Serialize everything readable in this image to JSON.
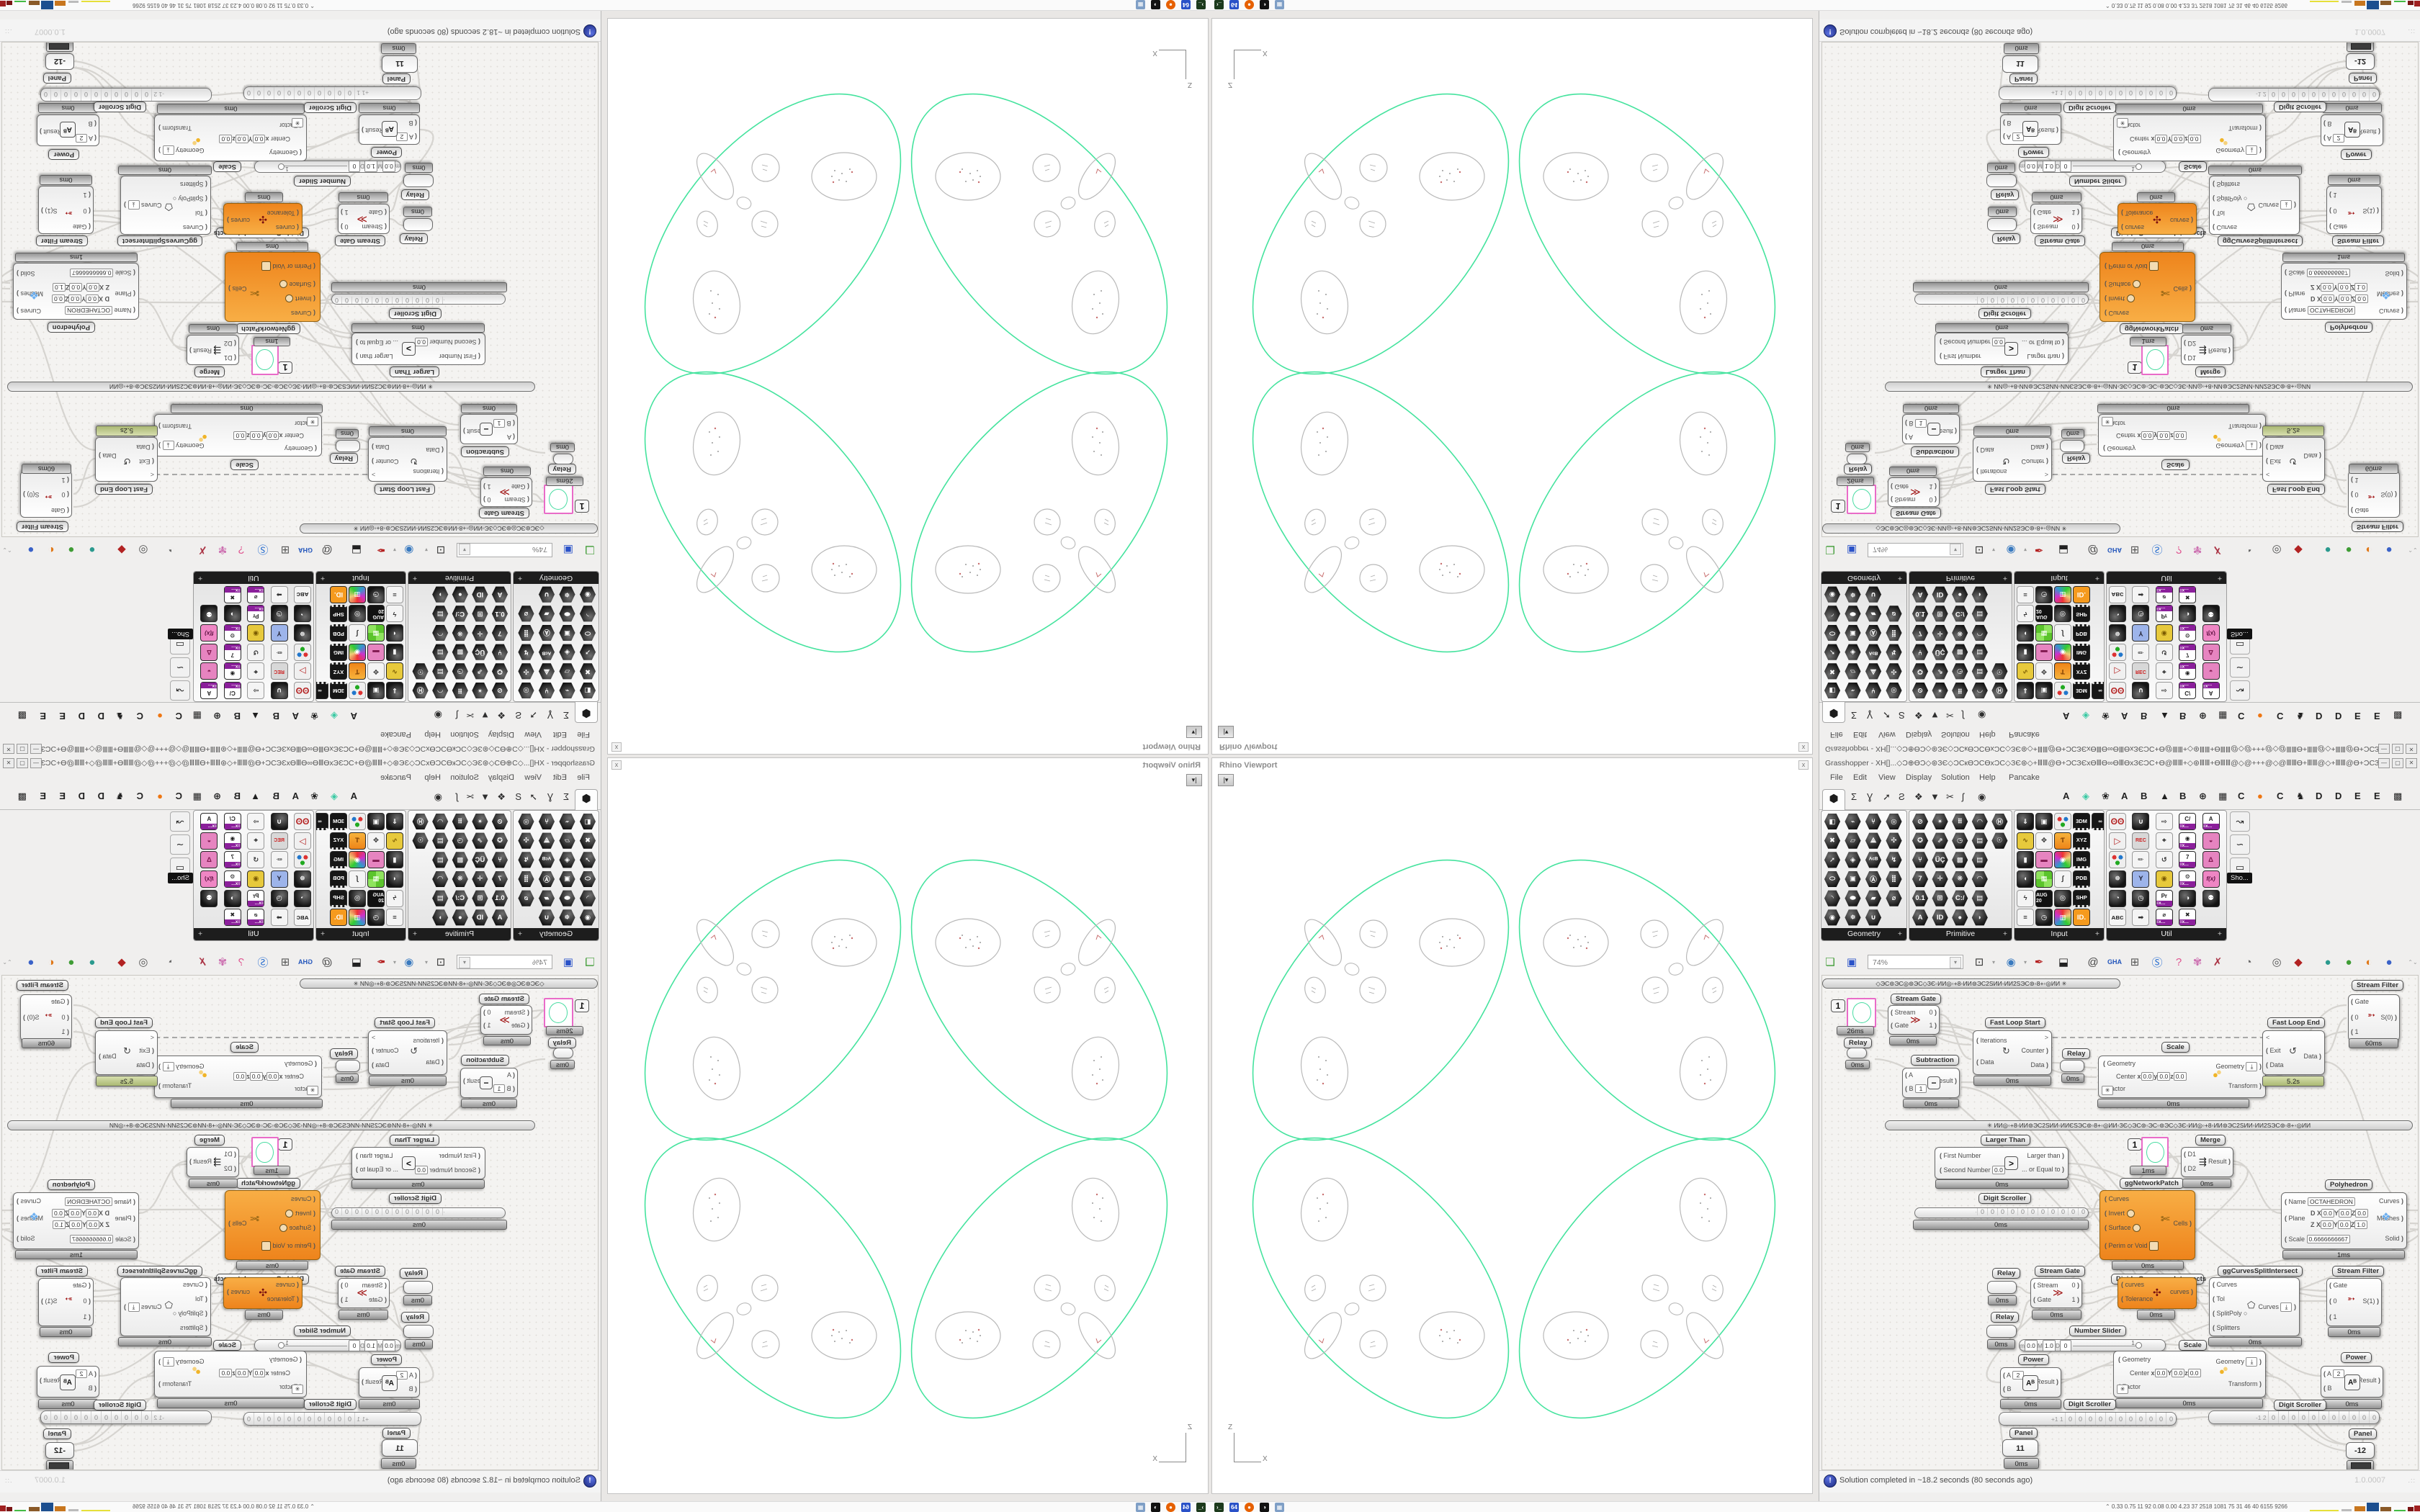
{
  "viewport": {
    "title": "Rhino Viewport",
    "close_glyph": "x",
    "collapse_glyph": "|▾",
    "axis": {
      "vertical": "Z",
      "horizontal": "X"
    },
    "colors": {
      "curve": "#45e39e",
      "inner": "#b9b9b9",
      "mark": "#c86e6e"
    }
  },
  "gh": {
    "title": "Grasshopper - XH[]...◇Ɔ⊕ƟƆ◇⊛ЗЄ◇ƆСкƟƆСƟхƆС◇ЗЄ⊛◇+ⅢⅢ@Ɵ+ƆСЗЄхƟⅢƟ∞ƟⅢƟхЗЄƆС+Ɵ@ⅢⅢ+◇⊛ⅢⅢ+ƟⅢⅢ@◇@+++@◇@ⅢⅢƟ+ⅢⅢ@◇+ⅢⅢ@Ɵ+ƆСЗЄхƟⅢƟхƟⅢ...",
    "window_buttons": [
      "—",
      "▢",
      "✕"
    ],
    "menu": [
      "File",
      "Edit",
      "View",
      "Display",
      "Solution",
      "Help",
      "Pancake"
    ],
    "tabs": {
      "selected_glyph": "⬢",
      "icon_tabs": [
        "Σ",
        "Ɣ",
        "➚",
        "Ƨ",
        "❖",
        "▼",
        "✂",
        "ʃ",
        "◉"
      ],
      "letter_tabs": [
        "A",
        "◈|t",
        "❀",
        "A",
        "B",
        "▲",
        "B",
        "⊕",
        "▦",
        "C",
        "●|o",
        "C",
        "♞",
        "D",
        "D",
        "E",
        "E",
        "▩"
      ]
    },
    "palettes": [
      {
        "name": "Geometry",
        "rows": [
          [
            "◧",
            "⌁",
            "⑂",
            "◎"
          ],
          [
            "✖",
            "▱",
            "⟁",
            "✣"
          ],
          [
            "➚",
            "◈",
            "ᴬᶜᴮ",
            "↯"
          ],
          [
            "⬭",
            "▣",
            "Ⓐ",
            "⣿"
          ],
          [
            "◝",
            "⬬",
            "▰",
            "⌀"
          ],
          [
            "◉",
            "❅",
            "∪"
          ]
        ]
      },
      {
        "name": "Primitive",
        "rows": [
          [
            "⊘",
            "✴",
            "⠿",
            "◠",
            "Ⓗ"
          ],
          [
            "✪",
            "⇗",
            "◷",
            "▤",
            "☉"
          ],
          [
            "⑂",
            "ÜÇ",
            "▩",
            "▤"
          ],
          [
            "7",
            "✛",
            "❋",
            "◠"
          ],
          [
            "0.1",
            "⊞",
            "C:/",
            "▤"
          ],
          [
            "A",
            "ID",
            "●",
            "◗"
          ]
        ]
      },
      {
        "name": "Input",
        "rows": [
          [
            "⇓|sq",
            "▣|sq",
            "✦|sq mc",
            "3DM|sq k2",
            "∞|sq k2"
          ],
          [
            "∿|sq y",
            "✥|sq w",
            "Ƭ|sq o",
            "XYZ|sq k2"
          ],
          [
            "▮|sq",
            "▬|sq p",
            "◉|sq rb",
            "IMG|sq k2"
          ],
          [
            "◖|sq",
            "▦|sq g",
            "∫|sq w",
            "PDB|sq k2"
          ],
          [
            "ϟ|sq w",
            "AUG 20|sq cal",
            "◎|sq",
            "SHP|sq k2"
          ],
          [
            "≡|sq w",
            "◷|sq",
            "▥|sq rb",
            "ID.|sq o2"
          ]
        ]
      },
      {
        "name": "Util",
        "rows": [
          [
            "ʘʘ|sq r",
            "∪|sq",
            "⇨|sq w",
            "C/|sq v2",
            "A|sq v2"
          ],
          [
            "▷|sq r",
            "REC|sq rec",
            "⌖|sq w",
            "◉|sq v2",
            "◒|sq p"
          ],
          [
            "⚛|sq mc",
            "✏|sq w",
            "↺|sq w",
            "7|sq v2",
            "Δ|sq p"
          ],
          [
            "❅|sq",
            "Y|sq b",
            "◉|sq y",
            "⚙|sq v2",
            "f(x)|sq p2"
          ],
          [
            "◔|sq",
            "◷|sq",
            "Pr|sq v2",
            "◑|sq",
            "⚉|sq"
          ],
          [
            "ᴀʙᴄ|sq w",
            "➡|sq w",
            "⌀|sq v2",
            "✖|sq v2"
          ]
        ]
      }
    ],
    "extra_icons": [
      "↝",
      "∽",
      "▭"
    ],
    "show_more": "Sho...",
    "toolbar": {
      "zoom": "74%",
      "icons": [
        "❏|#3f9c35",
        "▣|#2a52c8",
        "⊡|#333",
        "◉|#3a7abf",
        "✒|#b42020",
        "⬓|#222",
        "@|#444",
        "GHA|#2255bb",
        "⊞|#555",
        "Ⓢ|#2a6fd0",
        "?|#e05590",
        "✾|#cc6fb0",
        "✗|#aa3344",
        "◔|#666",
        "◎|#555",
        "◆|#b22222",
        "●|#2b9a8e",
        "●|#3f9c35",
        "◐|#e07818",
        "●|#3a62c8"
      ],
      "scroll_glyphs": "⌃⌄"
    },
    "rails": [
      "◇ЭС⊚ЭС◎⊚ЭС◇ЗЄ◦ИИ◎◦+8◦ИИ⊚ЭС2ЅИИ◦ИИ2ЅЭС⊚◦8+◦◎ИИ",
      "ИИ◎◦+8◦ИИ⊚ЭС2ЅИИ◦ИИЄЅЭС⊚◦8+◦◎ИИ◦ЗЄ◇ЭС⊚◦ЭС◦⊚ЭС◇ЗЄ◦ИИ◎◦+8◦ИИ⊚ЭС2ЅИИ◦ИИ2ЅЭС⊚◦8+◦◎ИИ"
    ],
    "rail_star": "✳",
    "statusbar": {
      "icon": "!",
      "text": "Solution completed in ~18.2 seconds (80 seconds ago)",
      "version": "1.0.0007"
    },
    "components": {
      "preview_top": {
        "value": "1",
        "timer": "26ms"
      },
      "relay_top": {
        "label": "Relay",
        "timer": "0ms"
      },
      "stream_gate_top": {
        "label": "Stream Gate",
        "ins": [
          "Stream",
          "Gate"
        ],
        "outs": [
          "0",
          "1"
        ],
        "icon": "≫",
        "timer": "0ms"
      },
      "subtraction": {
        "label": "Subtraction",
        "ins": [
          "A",
          "B"
        ],
        "b_value": "1",
        "icon": "−",
        "outs": [
          "Result"
        ],
        "timer": "0ms"
      },
      "fast_loop_start": {
        "label": "Fast Loop Start",
        "ins": [
          "Iterations",
          "Data"
        ],
        "outs": [
          "Counter",
          "Data"
        ],
        "chevron": ">",
        "icon": "↻",
        "timer": "0ms"
      },
      "relay_mid": {
        "label": "Relay",
        "timer": "0ms"
      },
      "scale_tag_top": {
        "label": "Scale"
      },
      "scale_top": {
        "ins": [
          "Geometry",
          "Center",
          "Factor"
        ],
        "center_fields": [
          "x",
          "0.0",
          "y",
          "0.0",
          "z",
          "0.0"
        ],
        "outs": [
          "Geometry",
          "Transform"
        ],
        "timer": "0ms",
        "star": "✳",
        "dl": "⤓"
      },
      "fast_loop_end": {
        "label": "Fast Loop End",
        "chevron": "<",
        "ins": [
          "Exit",
          "Data"
        ],
        "outs": [
          "Data"
        ],
        "icon": "↺",
        "timer": "5.2s"
      },
      "stream_filter_top": {
        "label": "Stream Filter",
        "ins": [
          "Gate",
          "0",
          "1"
        ],
        "outs": [
          "S(0)"
        ],
        "icon": "➳",
        "timer": "60ms"
      },
      "larger_than": {
        "label": "Larger Than",
        "ins": [
          "First Number",
          "Second Number"
        ],
        "b_value": "0.0",
        "icon": ">",
        "outs": [
          "Larger than",
          "... or Equal to"
        ],
        "timer": "0ms"
      },
      "digit_top": {
        "label": "Digit Scroller",
        "prefix": "·",
        "digits": "0 0 0 0 0 0 0 0 0 0 0",
        "timer": "0ms"
      },
      "ggnetworkpatch": {
        "label": "ggNetworkPatch",
        "value": "1",
        "timer": "1ms"
      },
      "merge": {
        "label": "Merge",
        "ins": [
          "D1",
          "D2"
        ],
        "outs": [
          "Result"
        ],
        "icon": "⇶",
        "timer": "0ms"
      },
      "polyhedron": {
        "label": "Polyhedron",
        "name_lbl": "Name",
        "name_val": "OCTAHEDRON",
        "plane_lbl": "Plane",
        "row1": [
          "D X",
          "0.0",
          "Y",
          "0.0",
          "Z",
          "0.0"
        ],
        "row2": [
          "Z X",
          "0.0",
          "Y",
          "0.0",
          "Z",
          "1.0"
        ],
        "scale_lbl": "Scale",
        "scale_val": "0.6666666667",
        "outs": [
          "Curves",
          "Meshes",
          "Solid"
        ],
        "icon": "❖",
        "timer": "1ms"
      },
      "divide_big": {
        "label": "Divide Curves on Intersects",
        "ins": [
          "Curves",
          "Invert",
          "Surface",
          "Perim or Void"
        ],
        "outs": [
          "Cells"
        ],
        "icon": "✄",
        "timer": "0ms"
      },
      "relay_a": {
        "label": "Relay",
        "timer": "0ms"
      },
      "stream_gate_low": {
        "label": "Stream Gate",
        "ins": [
          "Stream",
          "Gate"
        ],
        "outs": [
          "0",
          "1"
        ],
        "icon": "≫",
        "timer": "0ms"
      },
      "relay_b": {
        "label": "Relay",
        "timer": "0ms"
      },
      "number_slider": {
        "label": "Number Slider",
        "fields": [
          "m",
          "0.0",
          "M",
          "1.0",
          "D",
          "0"
        ],
        "max": "1"
      },
      "scale_tag_low": {
        "label": "Scale"
      },
      "curves_small": {
        "ins": [
          "curves",
          "Tolerance"
        ],
        "outs": [
          "curves"
        ],
        "icon": "✣",
        "timer": "0ms"
      },
      "ggcsi": {
        "label": "ggCurvesSplitIntersect",
        "ins": [
          "Curves",
          "Tol",
          "SplitPoly",
          "Splitters"
        ],
        "outs": [
          "Curves"
        ],
        "icon": "⬠",
        "dl": "⤓",
        "timer": "0ms"
      },
      "stream_filter_low": {
        "label": "Stream Filter",
        "ins": [
          "Gate",
          "0",
          "1"
        ],
        "outs": [
          "S(1)"
        ],
        "icon": "➳",
        "timer": "0ms"
      },
      "power_left": {
        "label": "Power",
        "ins": [
          "A",
          "B"
        ],
        "a_value": "2",
        "icon": "Aᴮ",
        "outs": [
          "Result"
        ],
        "timer": "0ms"
      },
      "scale_big": {
        "ins": [
          "Geometry",
          "Center",
          "Factor"
        ],
        "center_fields": [
          "x",
          "0.0",
          "y",
          "0.0",
          "z",
          "0.0"
        ],
        "outs": [
          "Geometry",
          "Transform"
        ],
        "timer": "0ms",
        "star": "✳",
        "dl": "⤓"
      },
      "power_right": {
        "label": "Power",
        "ins": [
          "A",
          "B"
        ],
        "a_value": "2",
        "icon": "Aᴮ",
        "outs": [
          "Result"
        ],
        "timer": "0ms"
      },
      "digit_left": {
        "label": "Digit Scroller",
        "prefix": "+1 1",
        "digits": "0 0 0 0 0 0 0 0 0 0 0",
        "timer": ""
      },
      "digit_right": {
        "label": "Digit Scroller",
        "prefix": "-1 2",
        "digits": "0 0 0 0 0 0 0 0 0 0 0",
        "timer": ""
      },
      "panel_left": {
        "label": "Panel",
        "value": "11",
        "timer": "0ms"
      },
      "panel_right": {
        "label": "Panel",
        "value": "-12",
        "timer": "0ms"
      }
    }
  },
  "taskbar": {
    "icons": [
      {
        "name": "terminal",
        "glyph": "›_",
        "color": "#1c3a1c"
      },
      {
        "name": "floppy64",
        "glyph": "64",
        "color": "#2a52c8"
      },
      {
        "name": "firefox",
        "glyph": "●",
        "color": "#e66000"
      },
      {
        "name": "gimp",
        "glyph": "◑",
        "color": "#111111"
      },
      {
        "name": "calculator",
        "glyph": "▦",
        "color": "#7f9fc6"
      }
    ],
    "tray_icon": "⌃",
    "tray_numbers": "0.33 0.75  11   92  0.08 0.00 4.23  37  2518 1081  75   31   46   40  6155 9266"
  }
}
